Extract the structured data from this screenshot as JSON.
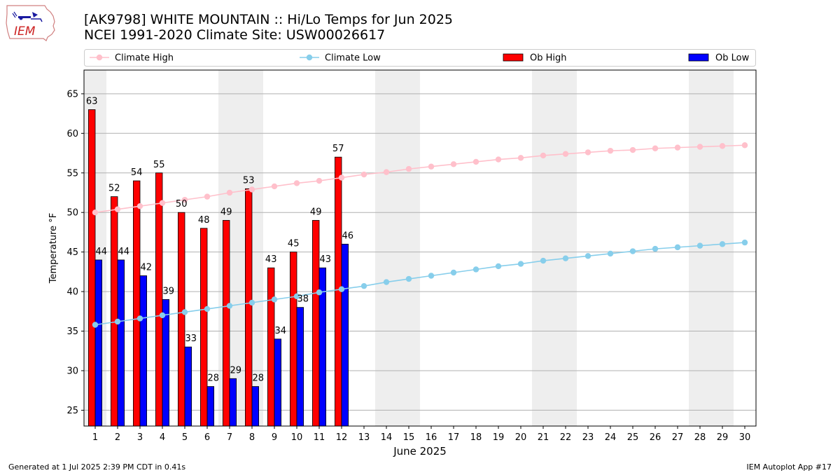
{
  "header": {
    "title_line1": "[AK9798] WHITE MOUNTAIN :: Hi/Lo Temps for Jun 2025",
    "title_line2": "NCEI 1991-2020 Climate Site: USW00026617"
  },
  "logo": {
    "text": "IEM"
  },
  "footer": {
    "generated": "Generated at 1 Jul 2025 2:39 PM CDT in 0.41s",
    "app": "IEM Autoplot App #17"
  },
  "colors": {
    "ob_high": "#ff0000",
    "ob_low": "#0000ff",
    "climate_high": "#ffc0cb",
    "climate_low": "#87ceeb",
    "weekend_shade": "#eeeeee",
    "grid": "#b0b0b0"
  },
  "chart_data": {
    "type": "bar",
    "xlabel": "June 2025",
    "ylabel": "Temperature °F",
    "xlim": [
      0.5,
      30.5
    ],
    "ylim": [
      23,
      68
    ],
    "yticks": [
      25,
      30,
      35,
      40,
      45,
      50,
      55,
      60,
      65
    ],
    "grid": "horizontal",
    "legend_position": "top",
    "days": [
      1,
      2,
      3,
      4,
      5,
      6,
      7,
      8,
      9,
      10,
      11,
      12,
      13,
      14,
      15,
      16,
      17,
      18,
      19,
      20,
      21,
      22,
      23,
      24,
      25,
      26,
      27,
      28,
      29,
      30
    ],
    "weekend_days": [
      1,
      7,
      8,
      14,
      15,
      21,
      22,
      28,
      29
    ],
    "series": [
      {
        "name": "Climate High",
        "kind": "line",
        "values": [
          50.0,
          50.4,
          50.8,
          51.2,
          51.6,
          52.0,
          52.5,
          52.9,
          53.3,
          53.7,
          54.0,
          54.4,
          54.8,
          55.1,
          55.5,
          55.8,
          56.1,
          56.4,
          56.7,
          56.9,
          57.2,
          57.4,
          57.6,
          57.8,
          57.9,
          58.1,
          58.2,
          58.3,
          58.4,
          58.5
        ]
      },
      {
        "name": "Climate Low",
        "kind": "line",
        "values": [
          35.8,
          36.2,
          36.6,
          37.0,
          37.4,
          37.8,
          38.2,
          38.6,
          39.0,
          39.4,
          39.9,
          40.3,
          40.7,
          41.2,
          41.6,
          42.0,
          42.4,
          42.8,
          43.2,
          43.5,
          43.9,
          44.2,
          44.5,
          44.8,
          45.1,
          45.4,
          45.6,
          45.8,
          46.0,
          46.2
        ]
      },
      {
        "name": "Ob High",
        "kind": "bar",
        "values": [
          63,
          52,
          54,
          55,
          50,
          48,
          49,
          53,
          43,
          45,
          49,
          57
        ]
      },
      {
        "name": "Ob Low",
        "kind": "bar",
        "values": [
          44,
          44,
          42,
          39,
          33,
          28,
          29,
          28,
          34,
          38,
          43,
          46
        ]
      }
    ]
  }
}
